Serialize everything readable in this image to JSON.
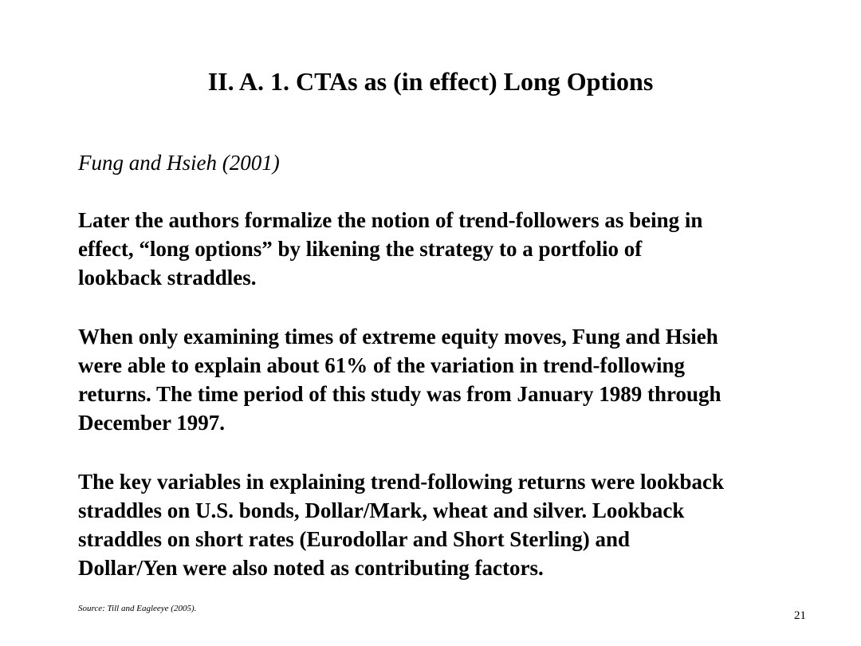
{
  "slide": {
    "title": "II.  A.  1. CTAs as (in effect) Long Options",
    "subtitle": "Fung and Hsieh (2001)",
    "paragraphs": [
      {
        "lines": [
          "Later the authors formalize the notion of trend-followers as being in",
          "effect, “long options” by likening the strategy to a portfolio of",
          "lookback straddles."
        ]
      },
      {
        "lines": [
          "When only examining times of extreme equity moves, Fung and Hsieh",
          "were able to explain about 61% of the variation in trend-following",
          "returns.  The time period of this study was from January 1989 through",
          "December 1997."
        ]
      },
      {
        "lines": [
          "The key variables in explaining trend-following returns were lookback",
          "straddles on U.S. bonds, Dollar/Mark, wheat and silver.  Lookback",
          "straddles on short rates (Eurodollar and Short Sterling) and",
          "Dollar/Yen were also noted as contributing factors."
        ]
      }
    ],
    "source": "Source:  Till and Eagleeye (2005).",
    "page_number": "21"
  }
}
